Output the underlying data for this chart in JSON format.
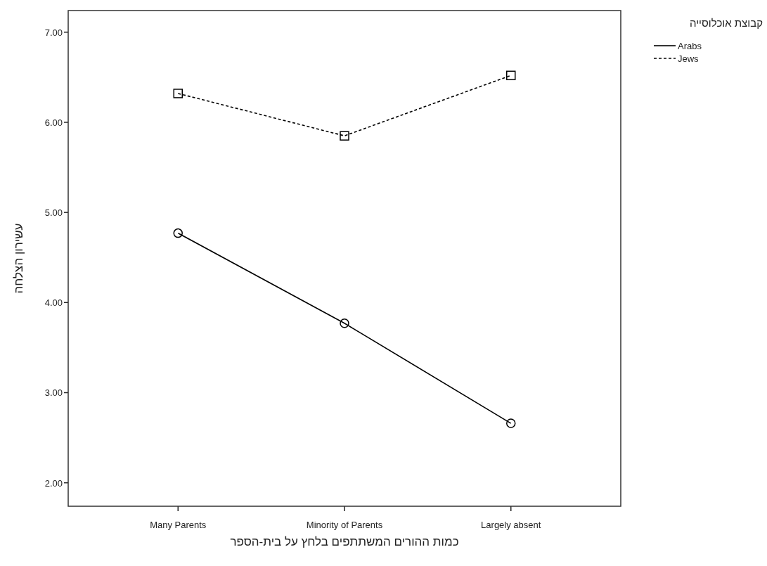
{
  "chart_data": {
    "type": "line",
    "xlabel": "כמות ההורים המשתתפים בלחץ על בית-הספר",
    "ylabel": "עשירון הצלחה",
    "legend_title": "קבוצת אוכלוסייה",
    "categories": [
      "Many Parents",
      "Minority of Parents",
      "Largely absent"
    ],
    "ylim": [
      1.74,
      7.24
    ],
    "yticks": [
      {
        "value": 2,
        "label": "2.00"
      },
      {
        "value": 3,
        "label": "3.00"
      },
      {
        "value": 4,
        "label": "4.00"
      },
      {
        "value": 5,
        "label": "5.00"
      },
      {
        "value": 6,
        "label": "6.00"
      },
      {
        "value": 7,
        "label": "7.00"
      }
    ],
    "legend": "right",
    "grid": false,
    "series": [
      {
        "name": "Arabs",
        "color": "#000000",
        "marker": "circle",
        "line_style": "solid",
        "values": [
          4.77,
          3.77,
          2.66
        ]
      },
      {
        "name": "Jews",
        "color": "#000000",
        "marker": "square",
        "line_style": "dashed",
        "values": [
          6.32,
          5.85,
          6.52
        ]
      }
    ]
  }
}
